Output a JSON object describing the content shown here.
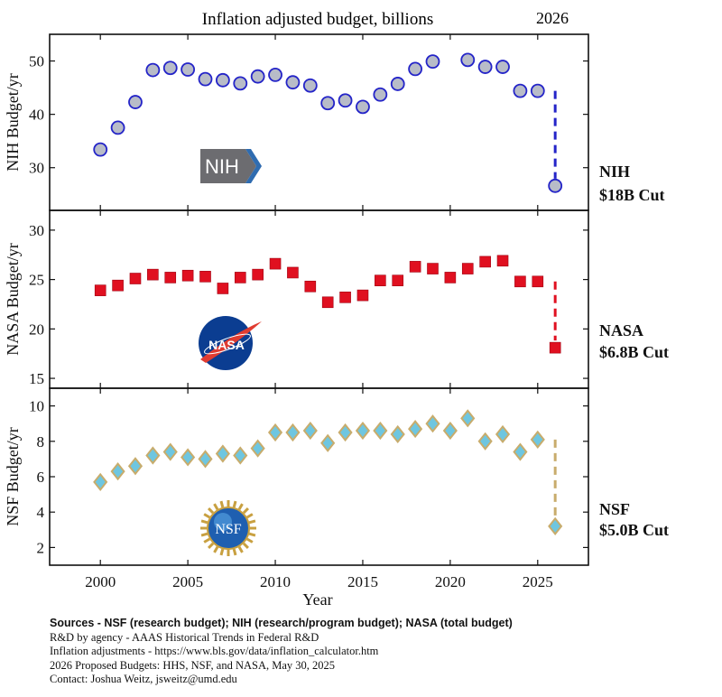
{
  "header": {
    "title": "Inflation adjusted budget, billions",
    "year_marker": "2026"
  },
  "colors": {
    "nih_marker_fill": "#b8bcc8",
    "nih_marker_stroke": "#2424c8",
    "nih_dash": "#2424c8",
    "nasa_marker_fill": "#e01020",
    "nasa_dash": "#e01020",
    "nsf_marker_fill": "#6ec6e0",
    "nsf_marker_stroke": "#c8ac6c",
    "nsf_dash": "#c8ac6c",
    "nih_logo_gray": "#6c6c70",
    "nih_logo_blue": "#2f6cb0",
    "nasa_logo_blue": "#0b3d91",
    "nasa_logo_red": "#e03c31"
  },
  "logos": {
    "nih": "NIH",
    "nasa": "NASA",
    "nsf": "NSF"
  },
  "chart_data": [
    {
      "type": "scatter",
      "panel": "nih",
      "ylabel": "NIH Budget/yr",
      "ylim": [
        22,
        55
      ],
      "yticks": [
        30,
        40,
        50
      ],
      "annotation": [
        "NIH",
        "$18B Cut"
      ],
      "marker": "circle",
      "x": [
        2000,
        2001,
        2002,
        2003,
        2004,
        2005,
        2006,
        2007,
        2008,
        2009,
        2010,
        2011,
        2012,
        2013,
        2014,
        2015,
        2016,
        2017,
        2018,
        2019,
        2021,
        2022,
        2023,
        2024,
        2025,
        2026
      ],
      "y": [
        33.4,
        37.5,
        42.3,
        48.3,
        48.7,
        48.4,
        46.6,
        46.4,
        45.8,
        47.1,
        47.4,
        46.0,
        45.4,
        42.1,
        42.6,
        41.4,
        43.7,
        45.7,
        48.5,
        49.9,
        50.2,
        48.9,
        48.9,
        44.4,
        44.4,
        26.6
      ],
      "cut_from": 44.4,
      "cut_to": 26.6
    },
    {
      "type": "scatter",
      "panel": "nasa",
      "ylabel": "NASA Budget/yr",
      "ylim": [
        14,
        32
      ],
      "yticks": [
        15,
        20,
        25,
        30
      ],
      "annotation": [
        "NASA",
        "$6.8B Cut"
      ],
      "marker": "square",
      "x": [
        2000,
        2001,
        2002,
        2003,
        2004,
        2005,
        2006,
        2007,
        2008,
        2009,
        2010,
        2011,
        2012,
        2013,
        2014,
        2015,
        2016,
        2017,
        2018,
        2019,
        2020,
        2021,
        2022,
        2023,
        2024,
        2025,
        2026
      ],
      "y": [
        23.9,
        24.4,
        25.1,
        25.5,
        25.2,
        25.4,
        25.3,
        24.1,
        25.2,
        25.5,
        26.6,
        25.7,
        24.3,
        22.7,
        23.2,
        23.4,
        24.9,
        24.9,
        26.3,
        26.1,
        25.2,
        26.1,
        26.8,
        26.9,
        24.8,
        24.8,
        18.1
      ],
      "cut_from": 24.8,
      "cut_to": 18.1
    },
    {
      "type": "scatter",
      "panel": "nsf",
      "ylabel": "NSF Budget/yr",
      "ylim": [
        1,
        11
      ],
      "yticks": [
        2,
        4,
        6,
        8,
        10
      ],
      "annotation": [
        "NSF",
        "$5.0B Cut"
      ],
      "marker": "diamond",
      "xlabel": "Year",
      "xticks": [
        2000,
        2005,
        2010,
        2015,
        2020,
        2025
      ],
      "xlim": [
        1997.1,
        2027.9
      ],
      "x": [
        2000,
        2001,
        2002,
        2003,
        2004,
        2005,
        2006,
        2007,
        2008,
        2009,
        2010,
        2011,
        2012,
        2013,
        2014,
        2015,
        2016,
        2017,
        2018,
        2019,
        2020,
        2021,
        2022,
        2023,
        2024,
        2025,
        2026
      ],
      "y": [
        5.7,
        6.3,
        6.6,
        7.2,
        7.4,
        7.1,
        7.0,
        7.3,
        7.2,
        7.6,
        8.5,
        8.5,
        8.6,
        7.9,
        8.5,
        8.6,
        8.6,
        8.4,
        8.7,
        9.0,
        8.6,
        9.3,
        8.0,
        8.4,
        7.4,
        8.1,
        3.2
      ],
      "cut_from": 8.1,
      "cut_to": 3.2
    }
  ],
  "sources": {
    "line1": "Sources - NSF (research budget); NIH (research/program budget); NASA (total budget)",
    "line2": "R&D by agency - AAAS Historical Trends in Federal R&D",
    "line3": "Inflation adjustments - https://www.bls.gov/data/inflation_calculator.htm",
    "line4": "2026 Proposed Budgets: HHS, NSF, and NASA, May 30, 2025",
    "line5": "Contact: Joshua Weitz, jsweitz@umd.edu"
  }
}
